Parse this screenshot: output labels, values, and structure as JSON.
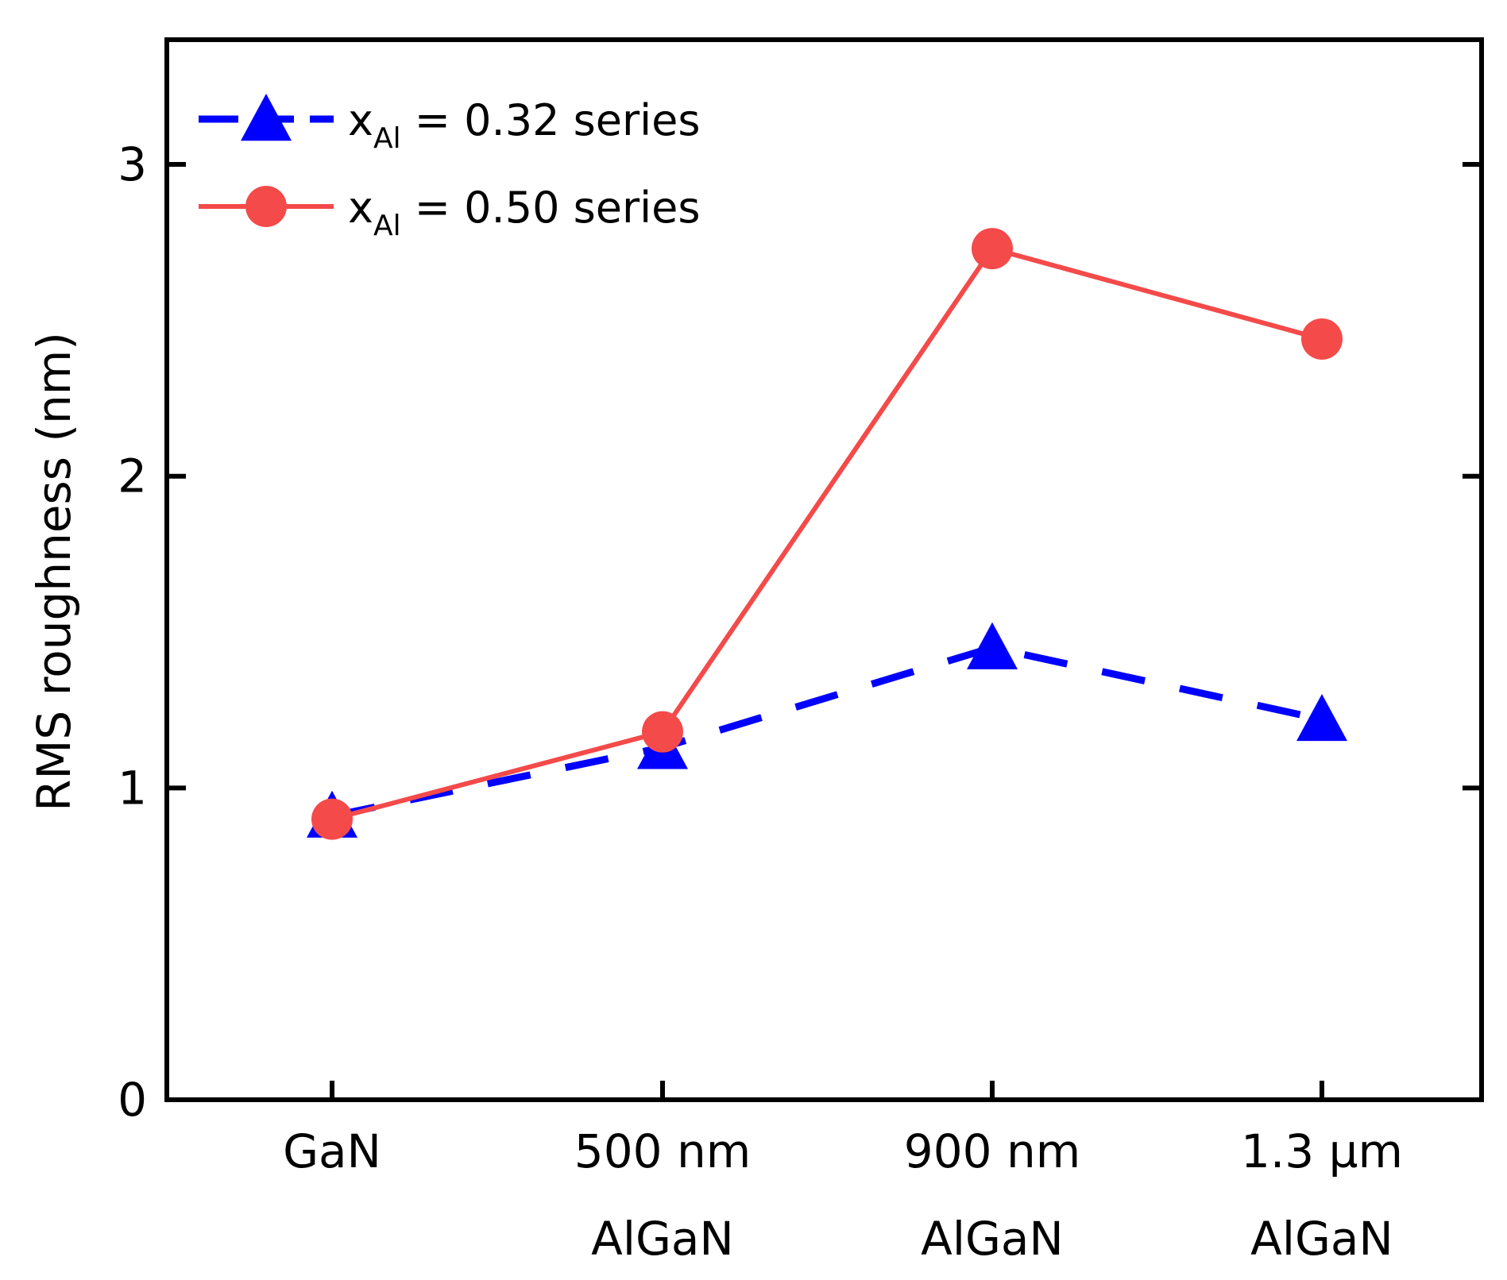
{
  "chart_data": {
    "type": "line",
    "title": "",
    "xlabel": "",
    "ylabel": "RMS roughness (nm)",
    "ylim": [
      0,
      3.4
    ],
    "yticks": [
      0,
      1,
      2,
      3
    ],
    "categories": [
      [
        "GaN"
      ],
      [
        "500 nm",
        "AlGaN"
      ],
      [
        "900 nm",
        "AlGaN"
      ],
      [
        "1.3 µm",
        "AlGaN"
      ]
    ],
    "series": [
      {
        "name": "x_Al = 0.32 series",
        "legend_var": "x",
        "legend_sub": "Al",
        "legend_rest": " = 0.32 series",
        "values": [
          0.91,
          1.13,
          1.45,
          1.22
        ],
        "color": "#0000ff",
        "marker": "triangle",
        "dash": true
      },
      {
        "name": "x_Al = 0.50 series",
        "legend_var": "x",
        "legend_sub": "Al",
        "legend_rest": " = 0.50 series",
        "values": [
          0.9,
          1.18,
          2.73,
          2.44
        ],
        "color": "#f44a4a",
        "marker": "circle",
        "dash": false
      }
    ],
    "legend_position": "top-left",
    "grid": false
  }
}
